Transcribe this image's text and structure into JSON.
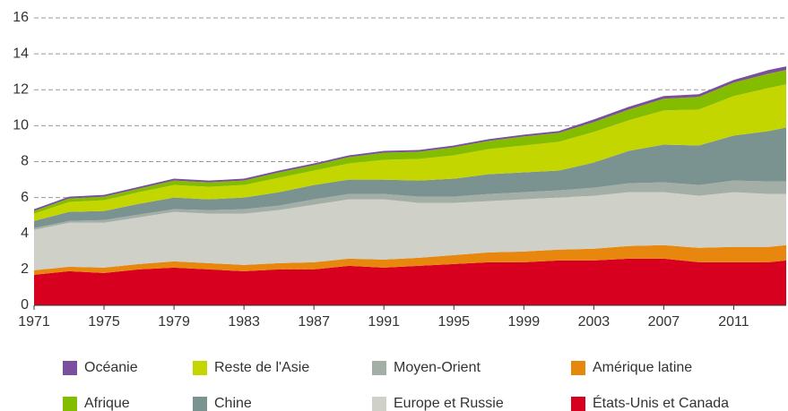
{
  "chart_data": {
    "type": "stacked_area",
    "x": [
      1971,
      1973,
      1975,
      1977,
      1979,
      1981,
      1983,
      1985,
      1987,
      1989,
      1991,
      1993,
      1995,
      1997,
      1999,
      2001,
      2003,
      2005,
      2007,
      2009,
      2011,
      2013,
      2014
    ],
    "xlim": [
      1971,
      2014
    ],
    "xticks": [
      1971,
      1975,
      1979,
      1983,
      1987,
      1991,
      1995,
      1999,
      2003,
      2007,
      2011
    ],
    "ylim": [
      0,
      16
    ],
    "yticks": [
      0,
      2,
      4,
      6,
      8,
      10,
      12,
      14,
      16
    ],
    "grid": true,
    "series": [
      {
        "name": "États-Unis et Canada",
        "color": "#d7001f",
        "values": [
          1.7,
          1.9,
          1.8,
          2.0,
          2.1,
          2.0,
          1.9,
          2.0,
          2.0,
          2.2,
          2.1,
          2.2,
          2.3,
          2.4,
          2.4,
          2.5,
          2.5,
          2.6,
          2.6,
          2.4,
          2.4,
          2.4,
          2.5
        ]
      },
      {
        "name": "Amérique latine",
        "color": "#e8870e",
        "values": [
          0.25,
          0.25,
          0.3,
          0.3,
          0.35,
          0.35,
          0.35,
          0.35,
          0.4,
          0.4,
          0.45,
          0.45,
          0.5,
          0.55,
          0.6,
          0.6,
          0.65,
          0.7,
          0.75,
          0.8,
          0.85,
          0.85,
          0.85
        ]
      },
      {
        "name": "Europe et Russie",
        "color": "#cfd0c8",
        "values": [
          2.25,
          2.45,
          2.5,
          2.6,
          2.75,
          2.75,
          2.85,
          2.95,
          3.2,
          3.3,
          3.35,
          3.05,
          2.9,
          2.85,
          2.9,
          2.9,
          2.95,
          3.0,
          2.95,
          2.9,
          3.05,
          2.95,
          2.85
        ]
      },
      {
        "name": "Moyen-Orient",
        "color": "#a3aea6",
        "values": [
          0.1,
          0.1,
          0.15,
          0.15,
          0.15,
          0.2,
          0.25,
          0.25,
          0.3,
          0.3,
          0.3,
          0.35,
          0.35,
          0.4,
          0.4,
          0.4,
          0.45,
          0.5,
          0.55,
          0.6,
          0.65,
          0.7,
          0.7
        ]
      },
      {
        "name": "Chine",
        "color": "#7b9390",
        "values": [
          0.4,
          0.5,
          0.5,
          0.6,
          0.65,
          0.6,
          0.65,
          0.75,
          0.8,
          0.8,
          0.8,
          0.9,
          1.0,
          1.1,
          1.1,
          1.1,
          1.4,
          1.8,
          2.1,
          2.2,
          2.5,
          2.8,
          3.0
        ]
      },
      {
        "name": "Reste de l'Asie",
        "color": "#c4d600",
        "values": [
          0.4,
          0.55,
          0.6,
          0.65,
          0.7,
          0.7,
          0.7,
          0.8,
          0.8,
          0.9,
          1.1,
          1.2,
          1.3,
          1.4,
          1.5,
          1.6,
          1.7,
          1.7,
          1.9,
          2.0,
          2.2,
          2.4,
          2.4
        ]
      },
      {
        "name": "Afrique",
        "color": "#84bd00",
        "values": [
          0.15,
          0.2,
          0.2,
          0.2,
          0.25,
          0.25,
          0.25,
          0.3,
          0.3,
          0.35,
          0.4,
          0.4,
          0.45,
          0.45,
          0.5,
          0.5,
          0.55,
          0.6,
          0.65,
          0.7,
          0.75,
          0.8,
          0.8
        ]
      },
      {
        "name": "Océanie",
        "color": "#7b4f9e",
        "values": [
          0.1,
          0.1,
          0.1,
          0.1,
          0.1,
          0.1,
          0.1,
          0.1,
          0.1,
          0.1,
          0.1,
          0.1,
          0.1,
          0.1,
          0.1,
          0.1,
          0.15,
          0.15,
          0.15,
          0.15,
          0.15,
          0.2,
          0.2
        ]
      }
    ]
  }
}
